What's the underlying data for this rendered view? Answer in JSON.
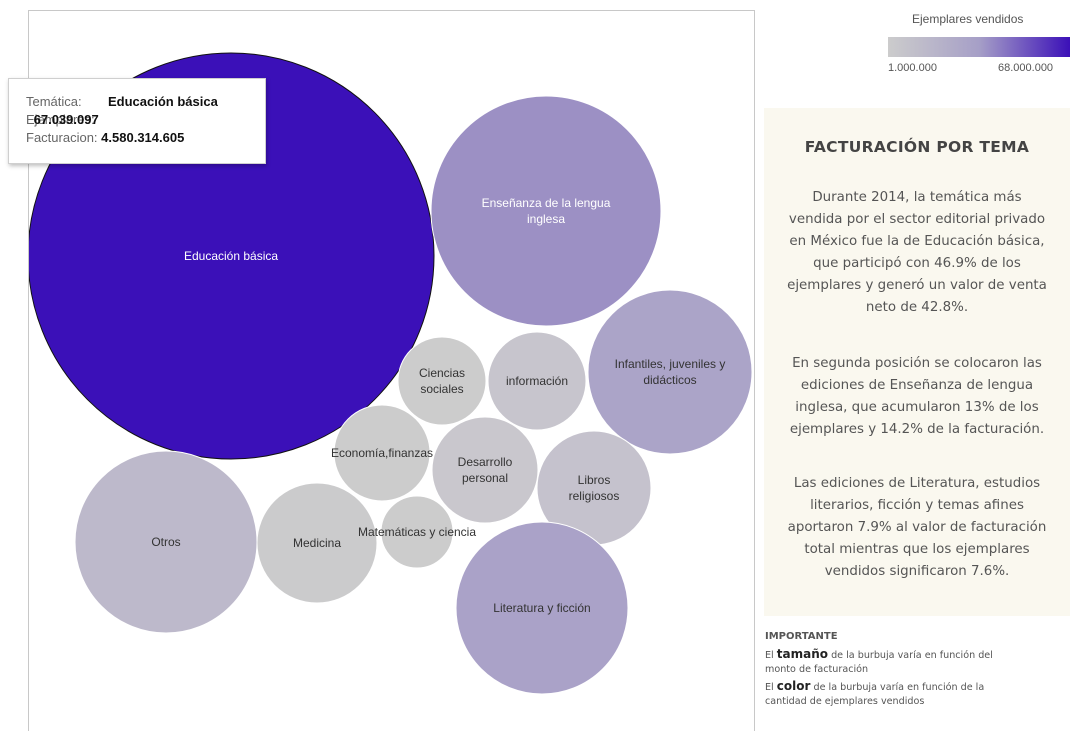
{
  "chart_data": {
    "type": "bubble",
    "size_measure": "Facturacion",
    "color_measure": "Ejemplares vendidos",
    "legend": {
      "title": "Ejemplares vendidos",
      "min_label": "1.000.000",
      "max_label": "68.000.000",
      "colors": [
        "#cccccc",
        "#a69fc7",
        "#3b10b8"
      ]
    },
    "bubbles": [
      {
        "label": "Educación básica",
        "lines": [
          "Educación básica"
        ],
        "color": "#3b10b8",
        "text_color": "#ffffff"
      },
      {
        "label": "Enseñanza de la lengua inglesa",
        "lines": [
          "Enseñanza de la lengua",
          "inglesa"
        ],
        "color": "#9c90c4",
        "text_color": "#ffffff"
      },
      {
        "label": "Infantiles, juveniles y didácticos",
        "lines": [
          "Infantiles, juveniles y",
          "didácticos"
        ],
        "color": "#aba4c8",
        "text_color": "#333333"
      },
      {
        "label": "información",
        "lines": [
          "información"
        ],
        "color": "#c7c5cd",
        "text_color": "#333333"
      },
      {
        "label": "Ciencias sociales",
        "lines": [
          "Ciencias",
          "sociales"
        ],
        "color": "#cccccc",
        "text_color": "#333333"
      },
      {
        "label": "Desarrollo personal",
        "lines": [
          "Desarrollo",
          "personal"
        ],
        "color": "#c9c7cd",
        "text_color": "#333333"
      },
      {
        "label": "Economía,finanzas",
        "lines": [
          "Economía,finanzas"
        ],
        "color": "#cccccc",
        "text_color": "#333333"
      },
      {
        "label": "Libros religiosos",
        "lines": [
          "Libros",
          "religiosos"
        ],
        "color": "#c5c2cd",
        "text_color": "#333333"
      },
      {
        "label": "Matemáticas y ciencia",
        "lines": [
          "Matemáticas y ciencia"
        ],
        "color": "#cccccc",
        "text_color": "#333333"
      },
      {
        "label": "Medicina",
        "lines": [
          "Medicina"
        ],
        "color": "#cbcbcc",
        "text_color": "#333333"
      },
      {
        "label": "Otros",
        "lines": [
          "Otros"
        ],
        "color": "#bdb9cb",
        "text_color": "#333333"
      },
      {
        "label": "Literatura y ficción",
        "lines": [
          "Literatura y ficción"
        ],
        "color": "#aaa2c8",
        "text_color": "#333333"
      }
    ],
    "tooltip": {
      "rows": [
        {
          "key": "Temática:",
          "value": "Educación básica"
        },
        {
          "key": "Ejemplares:",
          "value": "67.039.097"
        },
        {
          "key": "Facturacion:",
          "value": "4.580.314.605"
        }
      ]
    }
  },
  "panel": {
    "title": "FACTURACIÓN POR TEMA",
    "paragraphs": [
      [
        "Durante 2014, la temática más",
        "vendida por el sector editorial privado",
        "en México fue la de Educación básica,",
        "que participó con 46.9% de los",
        "ejemplares y generó un valor de venta",
        "neto de 42.8%."
      ],
      [
        "En segunda posición se colocaron las",
        "ediciones de Enseñanza de lengua",
        "inglesa, que acumularon 13% de los",
        "ejemplares y 14.2% de la facturación."
      ],
      [
        "Las ediciones de Literatura, estudios",
        "literarios, ficción y temas afines",
        "aportaron 7.9% al valor de facturación",
        "total mientras que los ejemplares",
        "vendidos significaron 7.6%."
      ]
    ]
  },
  "notes": {
    "heading": "IMPORTANTE",
    "line1_prefix": "El",
    "line1_bold": "tamaño",
    "line1_rest": "de la burbuja varía en función del",
    "line2": "monto de facturación",
    "line3_prefix": "El",
    "line3_bold": "color",
    "line3_rest": "de la burbuja varía en función de la",
    "line4": "cantidad de ejemplares vendidos"
  }
}
